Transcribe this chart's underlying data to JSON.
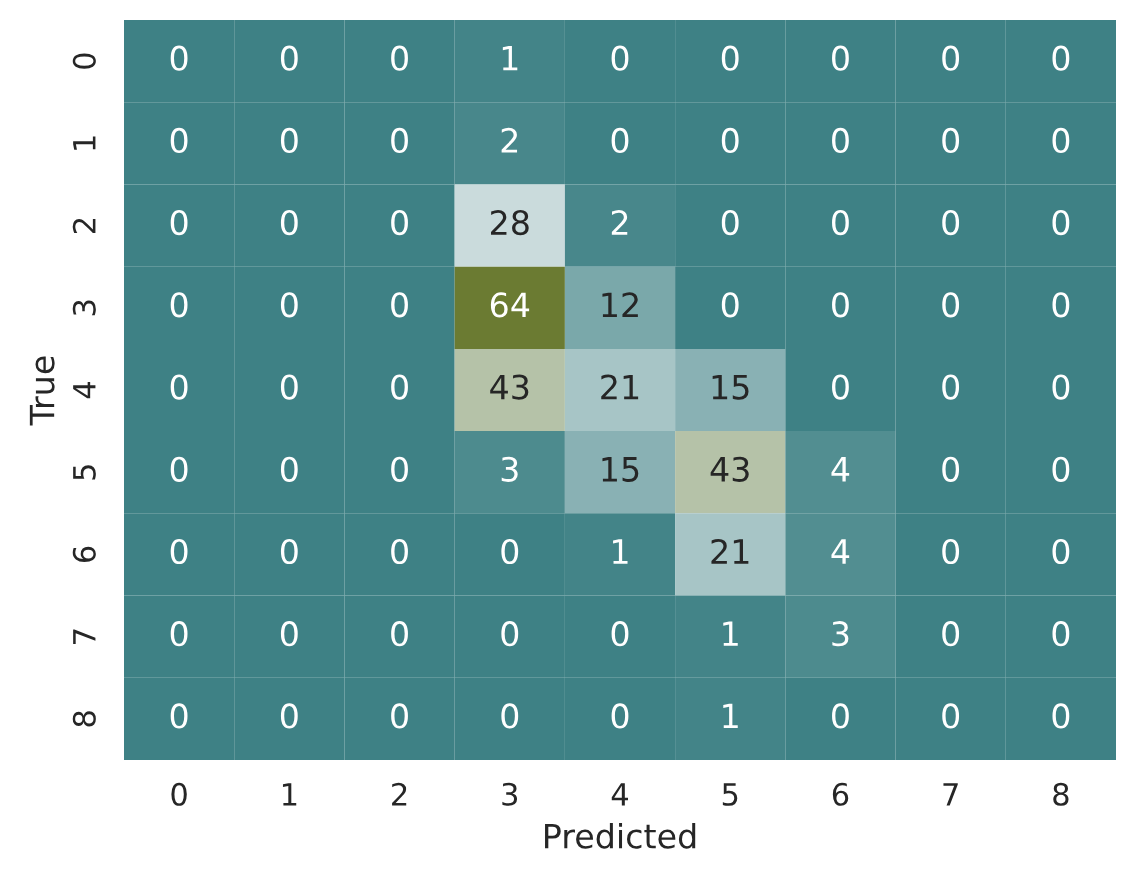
{
  "chart_data": {
    "type": "heatmap",
    "xlabel": "Predicted",
    "ylabel": "True",
    "categories": [
      "0",
      "1",
      "2",
      "3",
      "4",
      "5",
      "6",
      "7",
      "8"
    ],
    "y_categories": [
      "0",
      "1",
      "2",
      "3",
      "4",
      "5",
      "6",
      "7",
      "8"
    ],
    "cells": [
      [
        0,
        0,
        0,
        1,
        0,
        0,
        0,
        0,
        0
      ],
      [
        0,
        0,
        0,
        2,
        0,
        0,
        0,
        0,
        0
      ],
      [
        0,
        0,
        0,
        28,
        2,
        0,
        0,
        0,
        0
      ],
      [
        0,
        0,
        0,
        64,
        12,
        0,
        0,
        0,
        0
      ],
      [
        0,
        0,
        0,
        43,
        21,
        15,
        0,
        0,
        0
      ],
      [
        0,
        0,
        0,
        3,
        15,
        43,
        4,
        0,
        0
      ],
      [
        0,
        0,
        0,
        0,
        1,
        21,
        4,
        0,
        0
      ],
      [
        0,
        0,
        0,
        0,
        0,
        1,
        3,
        0,
        0
      ],
      [
        0,
        0,
        0,
        0,
        0,
        1,
        0,
        0,
        0
      ]
    ],
    "data_labels": true
  }
}
